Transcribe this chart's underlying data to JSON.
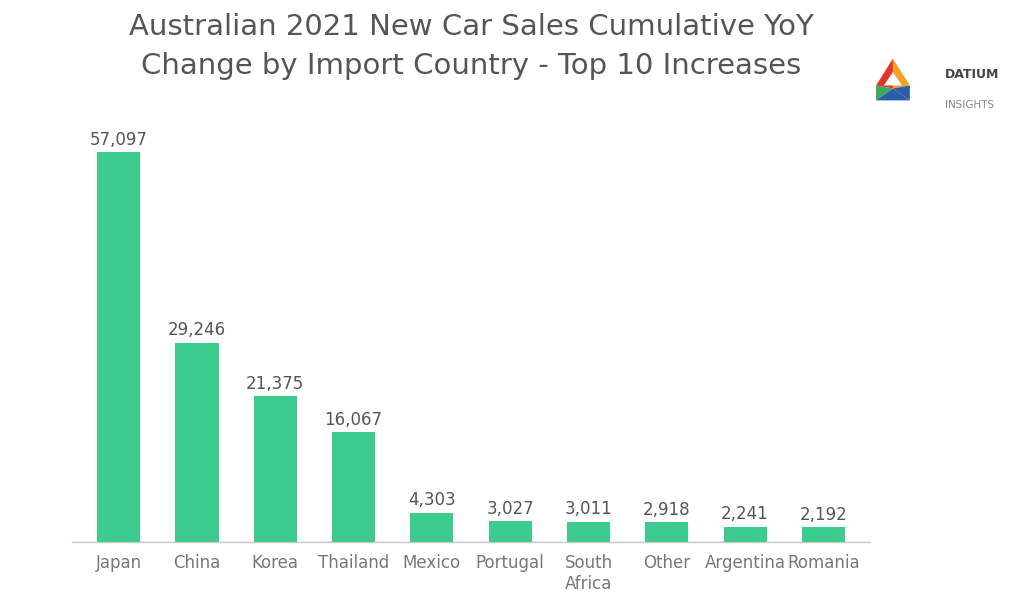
{
  "title_line1": "Australian 2021 New Car Sales Cumulative YoY",
  "title_line2": "Change by Import Country - Top 10 Increases",
  "categories": [
    "Japan",
    "China",
    "Korea",
    "Thailand",
    "Mexico",
    "Portugal",
    "South\nAfrica",
    "Other",
    "Argentina",
    "Romania"
  ],
  "values": [
    57097,
    29246,
    21375,
    16067,
    4303,
    3027,
    3011,
    2918,
    2241,
    2192
  ],
  "bar_color": "#3dcc8e",
  "background_color": "#ffffff",
  "value_labels": [
    "57,097",
    "29,246",
    "21,375",
    "16,067",
    "4,303",
    "3,027",
    "3,011",
    "2,918",
    "2,241",
    "2,192"
  ],
  "title_fontsize": 21,
  "label_fontsize": 12,
  "tick_fontsize": 12,
  "ylim": [
    0,
    65000
  ],
  "bar_width": 0.55,
  "title_color": "#555555",
  "tick_color": "#777777",
  "label_color": "#555555"
}
